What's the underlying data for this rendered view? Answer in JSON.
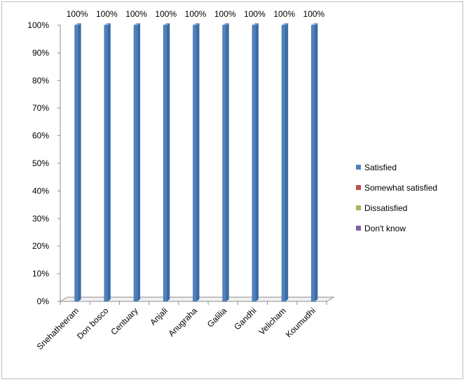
{
  "chart_data": {
    "type": "bar",
    "title": "",
    "xlabel": "",
    "ylabel": "",
    "categories": [
      "Snehatheeram",
      "Don bosco",
      "Centuary",
      "Anjali",
      "Anugraha",
      "Galilia",
      "Gandhi",
      "Velicham",
      "Koumudhi"
    ],
    "series": [
      {
        "name": "Satisfied",
        "color": "#4f81bd",
        "values": [
          100,
          100,
          100,
          100,
          100,
          100,
          100,
          100,
          100
        ]
      },
      {
        "name": "Somewhat satisfied",
        "color": "#c0504d",
        "values": [
          0,
          0,
          0,
          0,
          0,
          0,
          0,
          0,
          0
        ]
      },
      {
        "name": "Dissatisfied",
        "color": "#9bbb59",
        "values": [
          0,
          0,
          0,
          0,
          0,
          0,
          0,
          0,
          0
        ]
      },
      {
        "name": "Don't know",
        "color": "#8064a2",
        "values": [
          0,
          0,
          0,
          0,
          0,
          0,
          0,
          0,
          0
        ]
      }
    ],
    "data_labels": [
      "100%",
      "100%",
      "100%",
      "100%",
      "100%",
      "100%",
      "100%",
      "100%",
      "100%"
    ],
    "y_ticks": [
      "0%",
      "10%",
      "20%",
      "30%",
      "40%",
      "50%",
      "60%",
      "70%",
      "80%",
      "90%",
      "100%"
    ],
    "ylim": [
      0,
      100
    ],
    "stacked": true,
    "percent_stacked": true,
    "three_d": true,
    "grid": false,
    "legend_position": "right"
  }
}
